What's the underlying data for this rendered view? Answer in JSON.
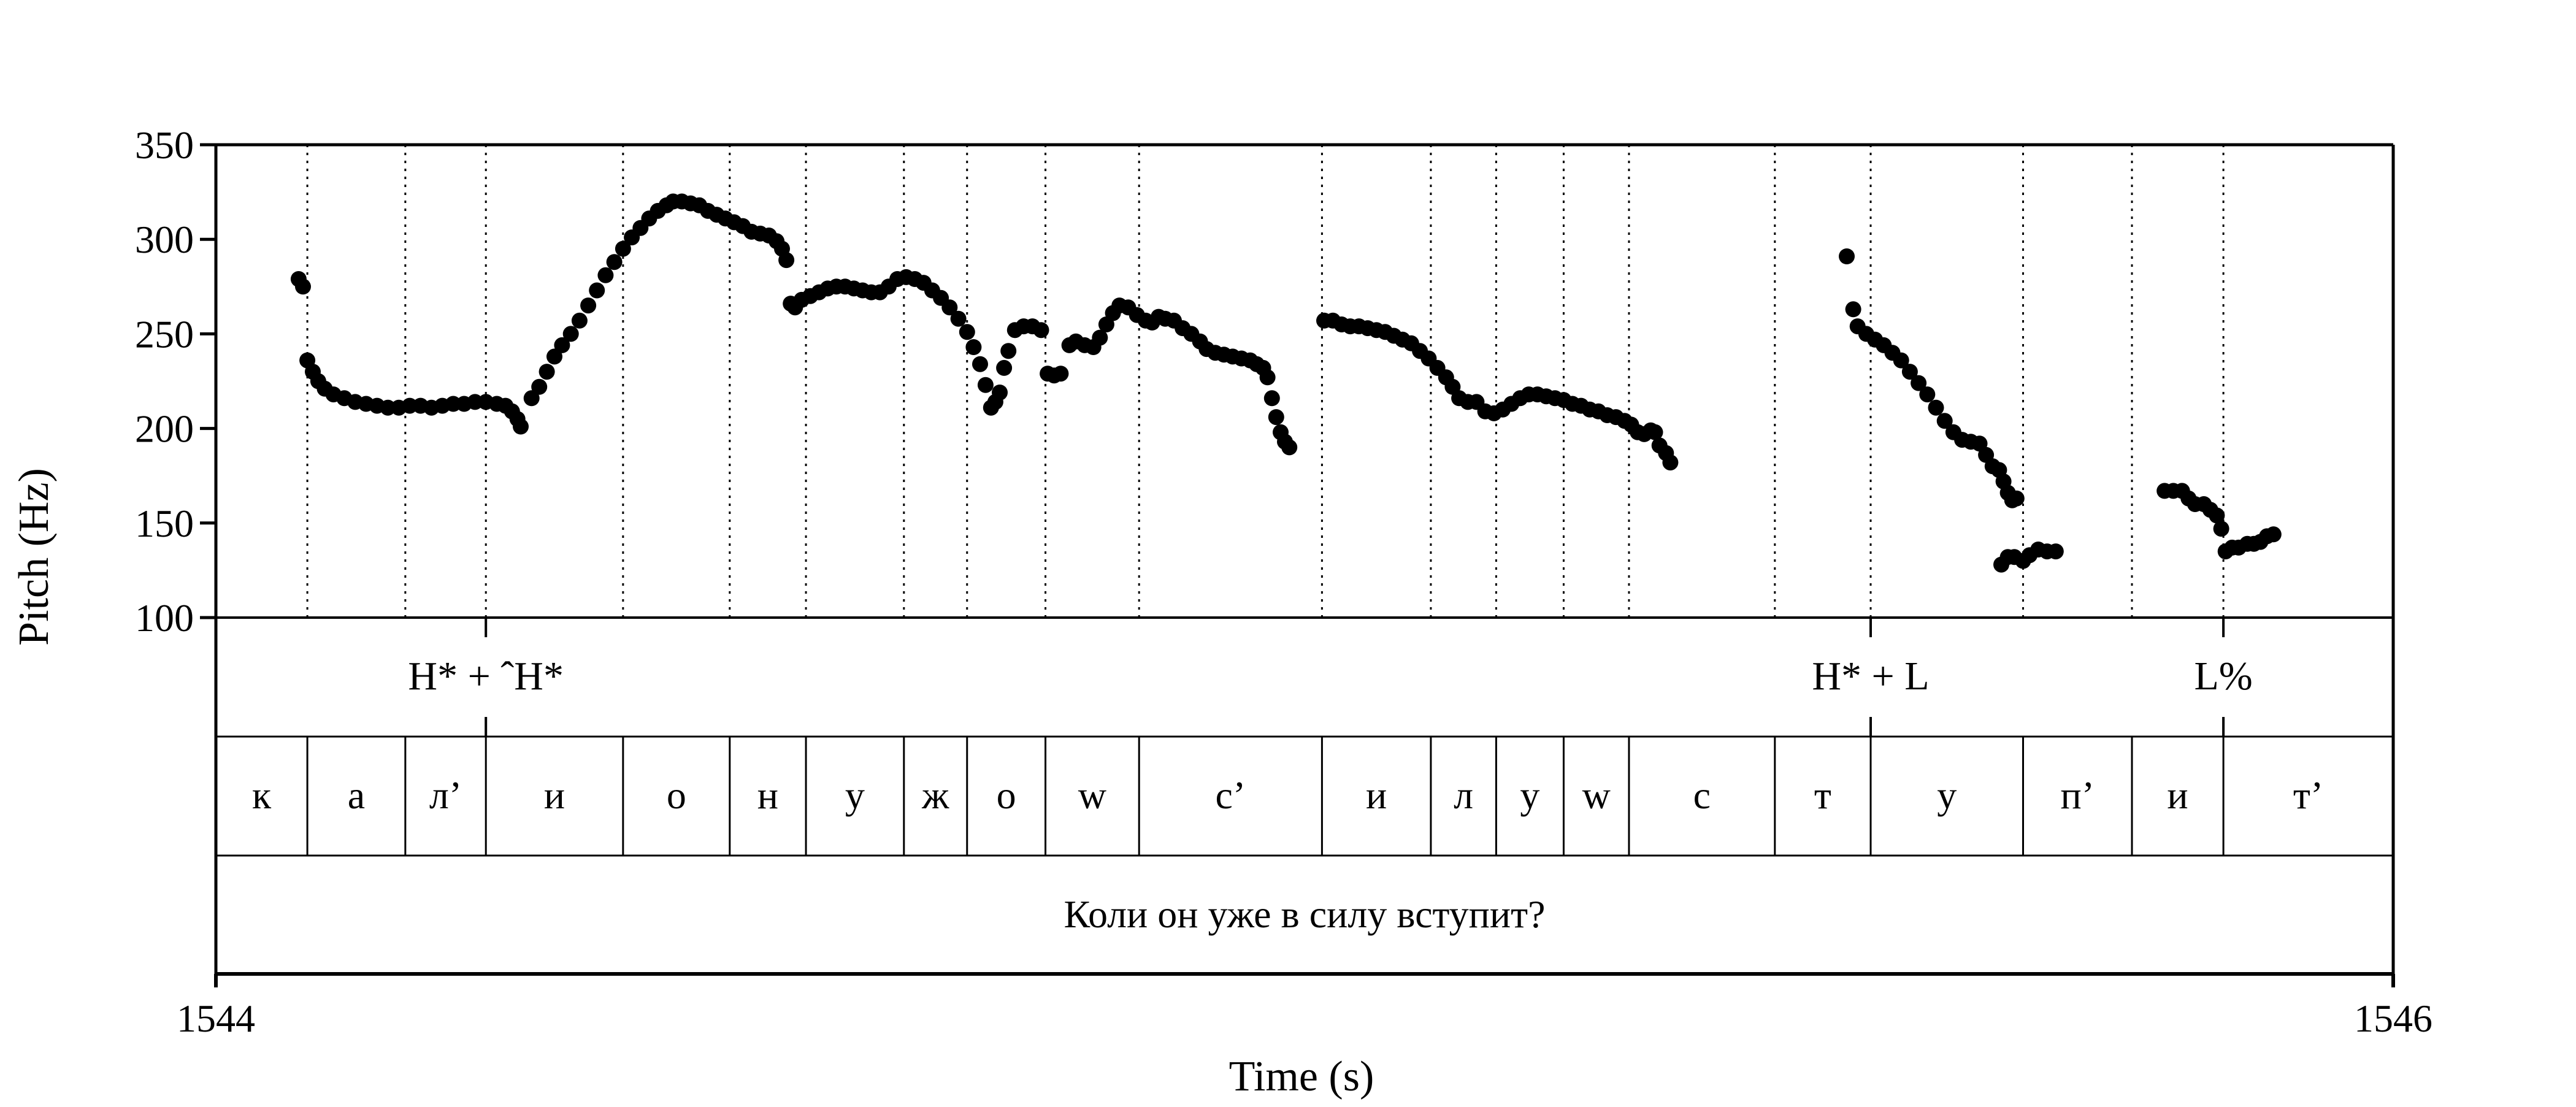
{
  "chart_data": {
    "type": "scatter",
    "title": "",
    "xlabel": "Time (s)",
    "ylabel": "Pitch (Hz)",
    "xlim": [
      1544,
      1546
    ],
    "ylim": [
      100,
      350
    ],
    "x_tick_labels": [
      "1544",
      "1546"
    ],
    "y_ticks": [
      100,
      150,
      200,
      250,
      300,
      350
    ],
    "y_tick_labels": [
      "100",
      "150",
      "200",
      "250",
      "300",
      "350"
    ],
    "grid": "dotted vertical lines at segment boundaries",
    "marker_color": "#000000",
    "series": [
      {
        "points": [
          [
            1544.076,
            279
          ],
          [
            1544.08,
            275
          ],
          [
            1544.084,
            236
          ],
          [
            1544.089,
            230
          ],
          [
            1544.094,
            225
          ],
          [
            1544.1,
            221
          ],
          [
            1544.108,
            218
          ],
          [
            1544.118,
            216
          ],
          [
            1544.128,
            214
          ],
          [
            1544.138,
            213
          ],
          [
            1544.148,
            212
          ],
          [
            1544.158,
            211
          ],
          [
            1544.168,
            211
          ],
          [
            1544.178,
            212
          ],
          [
            1544.188,
            212
          ],
          [
            1544.198,
            211
          ],
          [
            1544.208,
            212
          ],
          [
            1544.218,
            213
          ],
          [
            1544.228,
            213
          ],
          [
            1544.238,
            214
          ],
          [
            1544.248,
            214
          ],
          [
            1544.258,
            213
          ],
          [
            1544.266,
            212
          ],
          [
            1544.272,
            209
          ],
          [
            1544.277,
            205
          ],
          [
            1544.28,
            201
          ],
          [
            1544.29,
            216
          ],
          [
            1544.297,
            222
          ],
          [
            1544.304,
            230
          ],
          [
            1544.311,
            238
          ],
          [
            1544.318,
            244
          ],
          [
            1544.326,
            250
          ],
          [
            1544.334,
            257
          ],
          [
            1544.342,
            265
          ],
          [
            1544.35,
            273
          ],
          [
            1544.358,
            281
          ],
          [
            1544.366,
            288
          ],
          [
            1544.374,
            295
          ],
          [
            1544.382,
            301
          ],
          [
            1544.39,
            306
          ],
          [
            1544.398,
            311
          ],
          [
            1544.406,
            315
          ],
          [
            1544.414,
            318
          ],
          [
            1544.42,
            320
          ],
          [
            1544.428,
            320
          ],
          [
            1544.436,
            319
          ],
          [
            1544.444,
            318
          ],
          [
            1544.452,
            315
          ],
          [
            1544.46,
            313
          ],
          [
            1544.468,
            311
          ],
          [
            1544.476,
            309
          ],
          [
            1544.484,
            307
          ],
          [
            1544.492,
            304
          ],
          [
            1544.5,
            303
          ],
          [
            1544.508,
            302
          ],
          [
            1544.515,
            299
          ],
          [
            1544.52,
            295
          ],
          [
            1544.524,
            289
          ],
          [
            1544.528,
            266
          ],
          [
            1544.532,
            264
          ],
          [
            1544.538,
            268
          ],
          [
            1544.546,
            270
          ],
          [
            1544.554,
            272
          ],
          [
            1544.562,
            274
          ],
          [
            1544.57,
            275
          ],
          [
            1544.578,
            275
          ],
          [
            1544.586,
            274
          ],
          [
            1544.594,
            273
          ],
          [
            1544.602,
            272
          ],
          [
            1544.61,
            272
          ],
          [
            1544.618,
            275
          ],
          [
            1544.626,
            279
          ],
          [
            1544.634,
            280
          ],
          [
            1544.642,
            279
          ],
          [
            1544.65,
            277
          ],
          [
            1544.658,
            273
          ],
          [
            1544.666,
            269
          ],
          [
            1544.674,
            264
          ],
          [
            1544.682,
            258
          ],
          [
            1544.69,
            251
          ],
          [
            1544.696,
            243
          ],
          [
            1544.702,
            234
          ],
          [
            1544.707,
            223
          ],
          [
            1544.712,
            211
          ],
          [
            1544.716,
            214
          ],
          [
            1544.72,
            219
          ],
          [
            1544.724,
            232
          ],
          [
            1544.728,
            241
          ],
          [
            1544.734,
            252
          ],
          [
            1544.742,
            254
          ],
          [
            1544.75,
            254
          ],
          [
            1544.758,
            252
          ],
          [
            1544.764,
            229
          ],
          [
            1544.77,
            228
          ],
          [
            1544.776,
            229
          ],
          [
            1544.784,
            244
          ],
          [
            1544.79,
            246
          ],
          [
            1544.798,
            244
          ],
          [
            1544.806,
            243
          ],
          [
            1544.812,
            248
          ],
          [
            1544.818,
            255
          ],
          [
            1544.824,
            261
          ],
          [
            1544.83,
            265
          ],
          [
            1544.838,
            264
          ],
          [
            1544.846,
            260
          ],
          [
            1544.854,
            257
          ],
          [
            1544.86,
            256
          ],
          [
            1544.866,
            259
          ],
          [
            1544.872,
            258
          ],
          [
            1544.88,
            257
          ],
          [
            1544.888,
            253
          ],
          [
            1544.896,
            250
          ],
          [
            1544.904,
            246
          ],
          [
            1544.91,
            242
          ],
          [
            1544.918,
            240
          ],
          [
            1544.926,
            239
          ],
          [
            1544.934,
            238
          ],
          [
            1544.942,
            237
          ],
          [
            1544.95,
            236
          ],
          [
            1544.956,
            234
          ],
          [
            1544.962,
            232
          ],
          [
            1544.966,
            227
          ],
          [
            1544.97,
            216
          ],
          [
            1544.974,
            206
          ],
          [
            1544.978,
            198
          ],
          [
            1544.982,
            193
          ],
          [
            1544.986,
            190
          ],
          [
            1545.018,
            257
          ],
          [
            1545.026,
            257
          ],
          [
            1545.034,
            255
          ],
          [
            1545.042,
            254
          ],
          [
            1545.05,
            254
          ],
          [
            1545.058,
            253
          ],
          [
            1545.066,
            252
          ],
          [
            1545.074,
            251
          ],
          [
            1545.082,
            249
          ],
          [
            1545.09,
            247
          ],
          [
            1545.098,
            245
          ],
          [
            1545.106,
            241
          ],
          [
            1545.114,
            237
          ],
          [
            1545.122,
            232
          ],
          [
            1545.13,
            227
          ],
          [
            1545.136,
            222
          ],
          [
            1545.142,
            216
          ],
          [
            1545.15,
            214
          ],
          [
            1545.158,
            214
          ],
          [
            1545.166,
            209
          ],
          [
            1545.174,
            208
          ],
          [
            1545.182,
            210
          ],
          [
            1545.19,
            213
          ],
          [
            1545.198,
            216
          ],
          [
            1545.206,
            218
          ],
          [
            1545.214,
            218
          ],
          [
            1545.222,
            217
          ],
          [
            1545.23,
            216
          ],
          [
            1545.238,
            215
          ],
          [
            1545.246,
            213
          ],
          [
            1545.254,
            212
          ],
          [
            1545.262,
            210
          ],
          [
            1545.27,
            209
          ],
          [
            1545.278,
            207
          ],
          [
            1545.286,
            206
          ],
          [
            1545.294,
            204
          ],
          [
            1545.3,
            202
          ],
          [
            1545.306,
            198
          ],
          [
            1545.312,
            197
          ],
          [
            1545.318,
            199
          ],
          [
            1545.322,
            198
          ],
          [
            1545.326,
            191
          ],
          [
            1545.332,
            187
          ],
          [
            1545.336,
            182
          ],
          [
            1545.498,
            291
          ],
          [
            1545.504,
            263
          ],
          [
            1545.508,
            254
          ],
          [
            1545.516,
            250
          ],
          [
            1545.524,
            247
          ],
          [
            1545.532,
            244
          ],
          [
            1545.54,
            240
          ],
          [
            1545.548,
            236
          ],
          [
            1545.556,
            230
          ],
          [
            1545.564,
            224
          ],
          [
            1545.572,
            218
          ],
          [
            1545.58,
            211
          ],
          [
            1545.588,
            204
          ],
          [
            1545.596,
            198
          ],
          [
            1545.604,
            194
          ],
          [
            1545.612,
            193
          ],
          [
            1545.62,
            192
          ],
          [
            1545.626,
            186
          ],
          [
            1545.632,
            180
          ],
          [
            1545.638,
            178
          ],
          [
            1545.642,
            172
          ],
          [
            1545.646,
            166
          ],
          [
            1545.65,
            162
          ],
          [
            1545.654,
            163
          ],
          [
            1545.64,
            128
          ],
          [
            1545.646,
            132
          ],
          [
            1545.652,
            132
          ],
          [
            1545.66,
            130
          ],
          [
            1545.666,
            133
          ],
          [
            1545.674,
            136
          ],
          [
            1545.682,
            135
          ],
          [
            1545.69,
            135
          ],
          [
            1545.79,
            167
          ],
          [
            1545.798,
            167
          ],
          [
            1545.806,
            167
          ],
          [
            1545.812,
            163
          ],
          [
            1545.818,
            160
          ],
          [
            1545.826,
            160
          ],
          [
            1545.832,
            157
          ],
          [
            1545.838,
            154
          ],
          [
            1545.842,
            147
          ],
          [
            1545.846,
            135
          ],
          [
            1545.852,
            137
          ],
          [
            1545.858,
            137
          ],
          [
            1545.866,
            139
          ],
          [
            1545.872,
            139
          ],
          [
            1545.878,
            140
          ],
          [
            1545.884,
            143
          ],
          [
            1545.89,
            144
          ]
        ]
      }
    ],
    "boundaries": [
      1544.084,
      1544.174,
      1544.248,
      1544.374,
      1544.472,
      1544.542,
      1544.632,
      1544.69,
      1544.762,
      1544.848,
      1545.016,
      1545.116,
      1545.176,
      1545.238,
      1545.298,
      1545.432,
      1545.52,
      1545.66,
      1545.76,
      1545.844
    ],
    "tones": [
      {
        "label": "H* + ˆH*",
        "time": 1544.248
      },
      {
        "label": "H* + L",
        "time": 1545.52
      },
      {
        "label": "L%",
        "time": 1545.844
      }
    ],
    "segments": [
      {
        "label": "к",
        "start": 1544.0,
        "end": 1544.084
      },
      {
        "label": "а",
        "start": 1544.084,
        "end": 1544.174
      },
      {
        "label": "л’",
        "start": 1544.174,
        "end": 1544.248
      },
      {
        "label": "и",
        "start": 1544.248,
        "end": 1544.374
      },
      {
        "label": "о",
        "start": 1544.374,
        "end": 1544.472
      },
      {
        "label": "н",
        "start": 1544.472,
        "end": 1544.542
      },
      {
        "label": "у",
        "start": 1544.542,
        "end": 1544.632
      },
      {
        "label": "ж",
        "start": 1544.632,
        "end": 1544.69
      },
      {
        "label": "о",
        "start": 1544.69,
        "end": 1544.762
      },
      {
        "label": "w",
        "start": 1544.762,
        "end": 1544.848
      },
      {
        "label": "с’",
        "start": 1544.848,
        "end": 1545.016
      },
      {
        "label": "и",
        "start": 1545.016,
        "end": 1545.116
      },
      {
        "label": "л",
        "start": 1545.116,
        "end": 1545.176
      },
      {
        "label": "у",
        "start": 1545.176,
        "end": 1545.238
      },
      {
        "label": "w",
        "start": 1545.238,
        "end": 1545.298
      },
      {
        "label": "с",
        "start": 1545.298,
        "end": 1545.432
      },
      {
        "label": "т",
        "start": 1545.432,
        "end": 1545.52
      },
      {
        "label": "у",
        "start": 1545.52,
        "end": 1545.66
      },
      {
        "label": "п’",
        "start": 1545.66,
        "end": 1545.76
      },
      {
        "label": "и",
        "start": 1545.76,
        "end": 1545.844
      },
      {
        "label": "т’",
        "start": 1545.844,
        "end": 1546.0
      }
    ],
    "sentence": "Коли он уже в силу вступит?"
  }
}
